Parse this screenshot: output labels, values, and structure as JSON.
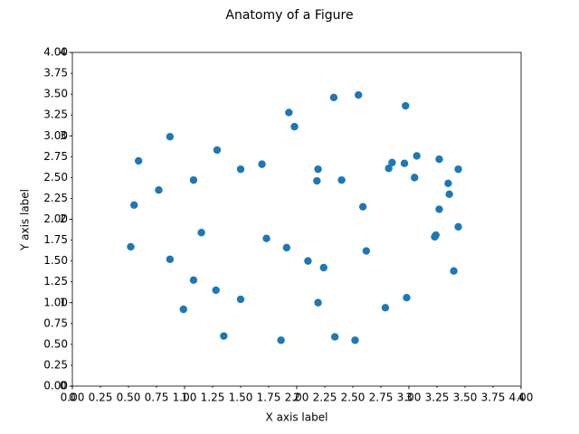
{
  "chart_data": {
    "type": "scatter",
    "title": "Anatomy of a Figure",
    "xlabel": "X axis label",
    "ylabel": "Y axis label",
    "color": "#1f77b4",
    "x": [
      0.52,
      0.55,
      0.59,
      0.77,
      0.87,
      0.87,
      0.99,
      1.08,
      1.08,
      1.15,
      1.29,
      1.28,
      1.35,
      1.5,
      1.5,
      1.69,
      1.73,
      1.86,
      1.91,
      1.93,
      1.98,
      2.1,
      2.18,
      2.19,
      2.19,
      2.24,
      2.33,
      2.34,
      2.4,
      2.52,
      2.55,
      2.59,
      2.62,
      2.79,
      2.82,
      2.85,
      2.96,
      2.97,
      2.98,
      3.05,
      3.07,
      3.23,
      3.24,
      3.27,
      3.27,
      3.35,
      3.36,
      3.4,
      3.44,
      3.44
    ],
    "y": [
      1.67,
      2.17,
      2.7,
      2.35,
      2.99,
      1.52,
      0.92,
      2.47,
      1.27,
      1.84,
      2.83,
      1.15,
      0.6,
      2.6,
      1.04,
      2.66,
      1.77,
      0.55,
      1.66,
      3.28,
      3.11,
      1.5,
      2.46,
      2.6,
      1.0,
      1.42,
      3.46,
      0.59,
      2.47,
      0.55,
      3.49,
      2.15,
      1.62,
      0.94,
      2.61,
      2.68,
      2.67,
      3.36,
      1.06,
      2.5,
      2.76,
      1.79,
      1.81,
      2.72,
      2.12,
      2.43,
      2.3,
      1.38,
      1.91,
      2.6
    ],
    "xlim": [
      0,
      4
    ],
    "ylim": [
      0,
      4
    ],
    "xticks": [
      0,
      1,
      2,
      3,
      4
    ],
    "yticks": [
      0,
      1,
      2,
      3,
      4
    ],
    "xticks_minor": [
      {
        "value": 0,
        "label": "0.00"
      },
      {
        "value": 0.25,
        "label": "0.25"
      },
      {
        "value": 0.5,
        "label": "0.50"
      },
      {
        "value": 0.75,
        "label": "0.75"
      },
      {
        "value": 1,
        "label": "1.00"
      },
      {
        "value": 1.25,
        "label": "1.25"
      },
      {
        "value": 1.5,
        "label": "1.50"
      },
      {
        "value": 1.75,
        "label": "1.75"
      },
      {
        "value": 2,
        "label": "2.00"
      },
      {
        "value": 2.25,
        "label": "2.25"
      },
      {
        "value": 2.5,
        "label": "2.50"
      },
      {
        "value": 2.75,
        "label": "2.75"
      },
      {
        "value": 3,
        "label": "3.00"
      },
      {
        "value": 3.25,
        "label": "3.25"
      },
      {
        "value": 3.5,
        "label": "3.50"
      },
      {
        "value": 3.75,
        "label": "3.75"
      },
      {
        "value": 4,
        "label": "4.00"
      }
    ],
    "yticks_minor": [
      {
        "value": 0,
        "label": "0.00"
      },
      {
        "value": 0.25,
        "label": "0.25"
      },
      {
        "value": 0.5,
        "label": "0.50"
      },
      {
        "value": 0.75,
        "label": "0.75"
      },
      {
        "value": 1,
        "label": "1.00"
      },
      {
        "value": 1.25,
        "label": "1.25"
      },
      {
        "value": 1.5,
        "label": "1.50"
      },
      {
        "value": 1.75,
        "label": "1.75"
      },
      {
        "value": 2,
        "label": "2.00"
      },
      {
        "value": 2.25,
        "label": "2.25"
      },
      {
        "value": 2.5,
        "label": "2.50"
      },
      {
        "value": 2.75,
        "label": "2.75"
      },
      {
        "value": 3,
        "label": "3.00"
      },
      {
        "value": 3.25,
        "label": "3.25"
      },
      {
        "value": 3.5,
        "label": "3.50"
      },
      {
        "value": 3.75,
        "label": "3.75"
      },
      {
        "value": 4,
        "label": "4.00"
      }
    ],
    "grid": false
  }
}
